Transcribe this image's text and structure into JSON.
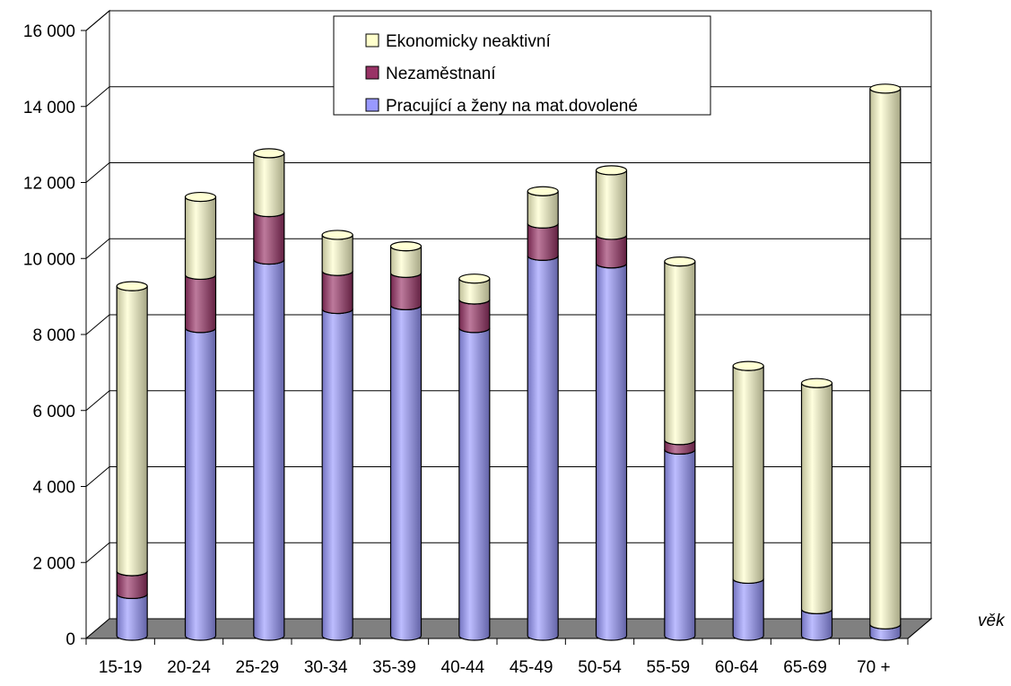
{
  "chart_data": {
    "type": "bar",
    "stacked": true,
    "style": "3d-cylinder",
    "title": "",
    "xlabel": "věk",
    "ylabel": "",
    "ylim": [
      0,
      16000
    ],
    "yticks": [
      0,
      2000,
      4000,
      6000,
      8000,
      10000,
      12000,
      14000,
      16000
    ],
    "ytick_labels": [
      "0",
      "2 000",
      "4 000",
      "6 000",
      "8 000",
      "10 000",
      "12 000",
      "14 000",
      "16 000"
    ],
    "grid": true,
    "legend_position": "top-center",
    "categories": [
      "15-19",
      "20-24",
      "25-29",
      "30-34",
      "35-39",
      "40-44",
      "45-49",
      "50-54",
      "55-59",
      "60-64",
      "65-69",
      "70 +"
    ],
    "series": [
      {
        "name": "Pracující a ženy na mat.dovolené",
        "color": "#9999ff",
        "values": [
          1100,
          8100,
          9900,
          8600,
          8700,
          8100,
          10000,
          9800,
          4900,
          1500,
          700,
          300
        ]
      },
      {
        "name": "Nezaměstnaní",
        "color": "#993366",
        "values": [
          600,
          1400,
          1250,
          1000,
          850,
          750,
          850,
          750,
          250,
          0,
          0,
          0
        ]
      },
      {
        "name": "Ekonomicky neaktivní",
        "color": "#ffffcc",
        "values": [
          7500,
          2050,
          1550,
          950,
          700,
          550,
          850,
          1700,
          4700,
          5600,
          5950,
          14100
        ]
      }
    ],
    "legend_order": [
      "Ekonomicky neaktivní",
      "Nezaměstnaní",
      "Pracující a ženy na mat.dovolené"
    ]
  }
}
